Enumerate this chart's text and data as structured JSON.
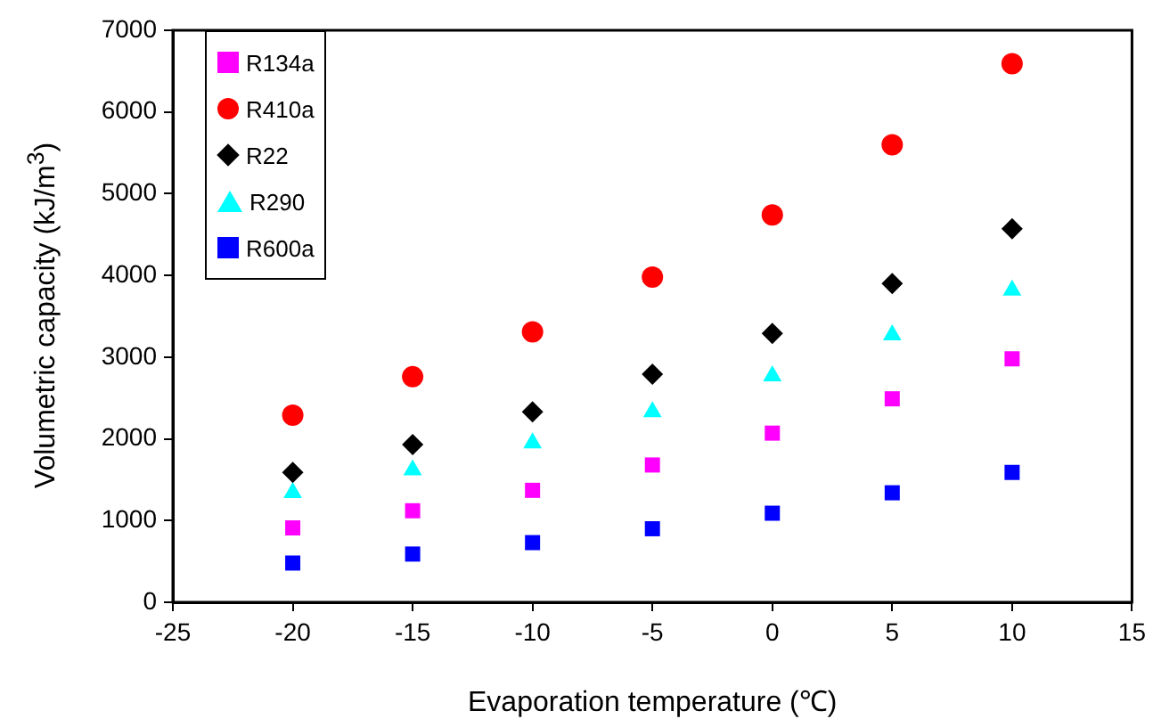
{
  "chart_data": {
    "type": "scatter",
    "xlabel": "Evaporation temperature (℃)",
    "ylabel": "Volumetric capacity (kJ/m$^{3}$)",
    "x": [
      -20,
      -15,
      -10,
      -5,
      0,
      5,
      10
    ],
    "xlim": [
      -25,
      15
    ],
    "xticks": [
      -25,
      -20,
      -15,
      -10,
      -5,
      0,
      5,
      10,
      15
    ],
    "ylim": [
      0,
      7000
    ],
    "yticks": [
      0,
      1000,
      2000,
      3000,
      4000,
      5000,
      6000,
      7000
    ],
    "grid": false,
    "legend": "top left",
    "series": [
      {
        "name": "R134a",
        "color": "#ff00ff",
        "marker": "square",
        "values": [
          910,
          1120,
          1370,
          1680,
          2070,
          2490,
          2980
        ]
      },
      {
        "name": "R410a",
        "color": "#ff0000",
        "marker": "circle",
        "values": [
          2290,
          2760,
          3310,
          3980,
          4740,
          5600,
          6590
        ]
      },
      {
        "name": "R22",
        "color": "#000000",
        "marker": "diamond",
        "values": [
          1590,
          1930,
          2330,
          2790,
          3290,
          3900,
          4570
        ]
      },
      {
        "name": "R290",
        "color": "#00ffff",
        "marker": "triangle",
        "values": [
          1340,
          1620,
          1950,
          2330,
          2770,
          3270,
          3820
        ]
      },
      {
        "name": "R600a",
        "color": "#0000ff",
        "marker": "square",
        "values": [
          480,
          590,
          730,
          900,
          1090,
          1340,
          1590
        ]
      }
    ]
  }
}
